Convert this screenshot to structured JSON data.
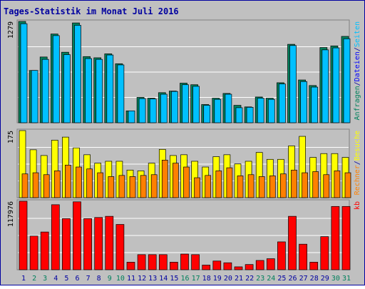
{
  "title": "Tages-Statistik im Monat Juli 2016",
  "colors": {
    "background": "#C0C0C0",
    "border": "#0000A0",
    "title": "#0000A0",
    "grid": "#FFFFFF",
    "weekend_label": "#00805C",
    "weekday_label": "#0000A0",
    "anfragen": "#00805C",
    "dateien": "#00C0FF",
    "seiten": "#00C0FF",
    "besuche": "#FFFF00",
    "rechner": "#FF8000",
    "kb": "#FF0000"
  },
  "chart_data": [
    {
      "type": "bar",
      "name": "hits-files",
      "ymax_label": "1279",
      "ymax": 1279,
      "legend": [
        {
          "text": "Anfragen",
          "color": "#00805C"
        },
        {
          "text": "/",
          "color": "#0000A0"
        },
        {
          "text": "Dateien",
          "color": "#0000FF"
        },
        {
          "text": "/",
          "color": "#0000A0"
        },
        {
          "text": "Seiten",
          "color": "#00C0FF"
        }
      ],
      "x": [
        "1",
        "2",
        "3",
        "4",
        "5",
        "6",
        "7",
        "8",
        "9",
        "10",
        "11",
        "12",
        "13",
        "14",
        "15",
        "16",
        "17",
        "18",
        "19",
        "20",
        "21",
        "22",
        "23",
        "24",
        "25",
        "26",
        "27",
        "28",
        "29",
        "30",
        "31"
      ],
      "series": [
        {
          "name": "Anfragen",
          "values": [
            1279,
            660,
            830,
            1120,
            890,
            1260,
            835,
            820,
            870,
            745,
            150,
            320,
            310,
            380,
            400,
            500,
            480,
            230,
            310,
            370,
            220,
            200,
            325,
            310,
            505,
            990,
            540,
            470,
            950,
            970,
            1090
          ]
        },
        {
          "name": "Dateien",
          "values": [
            1250,
            660,
            800,
            1100,
            860,
            1230,
            810,
            800,
            855,
            730,
            150,
            305,
            300,
            360,
            395,
            480,
            460,
            220,
            295,
            360,
            190,
            195,
            310,
            295,
            490,
            975,
            520,
            450,
            920,
            945,
            1060
          ]
        }
      ]
    },
    {
      "type": "bar",
      "name": "visits-sites",
      "ymax_label": "175",
      "ymax": 175,
      "legend": [
        {
          "text": "Rechner",
          "color": "#FF8000"
        },
        {
          "text": "/",
          "color": "#0000A0"
        },
        {
          "text": "Besuche",
          "color": "#FFFF00"
        }
      ],
      "x": [
        "1",
        "2",
        "3",
        "4",
        "5",
        "6",
        "7",
        "8",
        "9",
        "10",
        "11",
        "12",
        "13",
        "14",
        "15",
        "16",
        "17",
        "18",
        "19",
        "20",
        "21",
        "22",
        "23",
        "24",
        "25",
        "26",
        "27",
        "28",
        "29",
        "30",
        "31"
      ],
      "series": [
        {
          "name": "Besuche",
          "values": [
            175,
            125,
            110,
            150,
            158,
            130,
            112,
            90,
            95,
            95,
            72,
            70,
            90,
            126,
            110,
            112,
            95,
            80,
            107,
            112,
            88,
            95,
            118,
            100,
            100,
            135,
            160,
            105,
            115,
            115,
            105
          ]
        },
        {
          "name": "Rechner",
          "values": [
            62,
            65,
            60,
            70,
            85,
            80,
            75,
            65,
            55,
            58,
            55,
            58,
            60,
            98,
            90,
            80,
            52,
            58,
            70,
            78,
            57,
            60,
            55,
            57,
            62,
            72,
            65,
            68,
            60,
            70,
            65
          ]
        }
      ]
    },
    {
      "type": "bar",
      "name": "kbytes",
      "ymax_label": "117976",
      "ymax": 117976,
      "legend": [
        {
          "text": "kb",
          "color": "#FF0000"
        }
      ],
      "x": [
        "1",
        "2",
        "3",
        "4",
        "5",
        "6",
        "7",
        "8",
        "9",
        "10",
        "11",
        "12",
        "13",
        "14",
        "15",
        "16",
        "17",
        "18",
        "19",
        "20",
        "21",
        "22",
        "23",
        "24",
        "25",
        "26",
        "27",
        "28",
        "29",
        "30",
        "31"
      ],
      "series": [
        {
          "name": "kb",
          "values": [
            117976,
            58000,
            65000,
            112000,
            88000,
            117000,
            88000,
            90000,
            92000,
            78000,
            13000,
            26000,
            26000,
            26000,
            13000,
            27000,
            26000,
            8000,
            15000,
            12000,
            5000,
            9000,
            16000,
            19000,
            48000,
            92000,
            44000,
            13000,
            57000,
            109000,
            109000
          ]
        }
      ]
    }
  ],
  "days": [
    {
      "label": "1",
      "weekend": false
    },
    {
      "label": "2",
      "weekend": true
    },
    {
      "label": "3",
      "weekend": true
    },
    {
      "label": "4",
      "weekend": false
    },
    {
      "label": "5",
      "weekend": false
    },
    {
      "label": "6",
      "weekend": false
    },
    {
      "label": "7",
      "weekend": false
    },
    {
      "label": "8",
      "weekend": false
    },
    {
      "label": "9",
      "weekend": true
    },
    {
      "label": "10",
      "weekend": true
    },
    {
      "label": "11",
      "weekend": false
    },
    {
      "label": "12",
      "weekend": false
    },
    {
      "label": "13",
      "weekend": false
    },
    {
      "label": "14",
      "weekend": false
    },
    {
      "label": "15",
      "weekend": false
    },
    {
      "label": "16",
      "weekend": true
    },
    {
      "label": "17",
      "weekend": true
    },
    {
      "label": "18",
      "weekend": false
    },
    {
      "label": "19",
      "weekend": false
    },
    {
      "label": "20",
      "weekend": false
    },
    {
      "label": "21",
      "weekend": false
    },
    {
      "label": "22",
      "weekend": false
    },
    {
      "label": "23",
      "weekend": true
    },
    {
      "label": "24",
      "weekend": true
    },
    {
      "label": "25",
      "weekend": false
    },
    {
      "label": "26",
      "weekend": false
    },
    {
      "label": "27",
      "weekend": false
    },
    {
      "label": "28",
      "weekend": false
    },
    {
      "label": "29",
      "weekend": false
    },
    {
      "label": "30",
      "weekend": true
    },
    {
      "label": "31",
      "weekend": true
    }
  ]
}
